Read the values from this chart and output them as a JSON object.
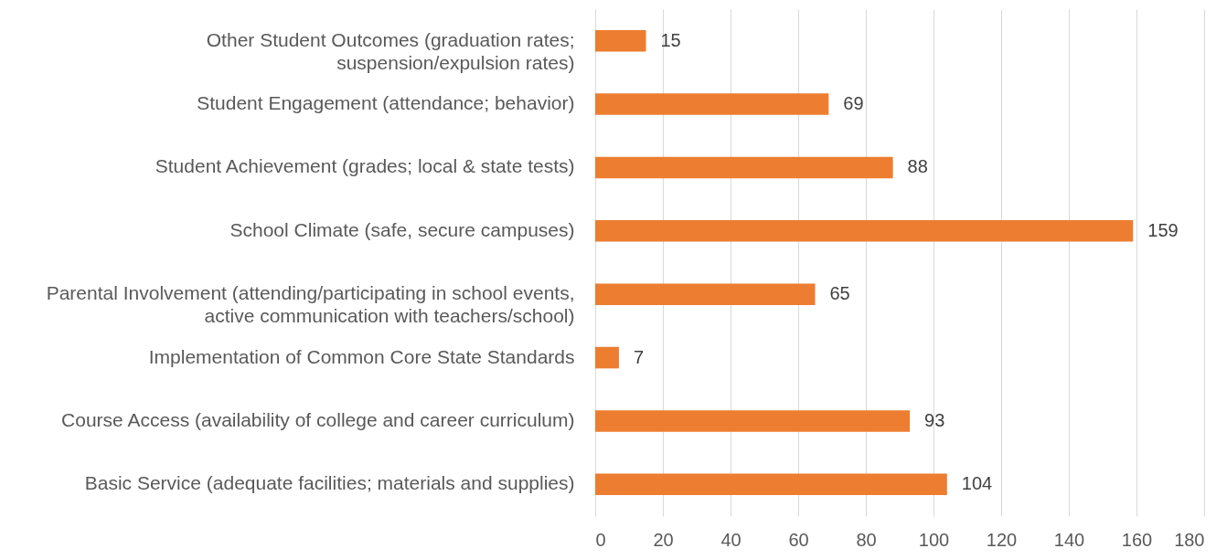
{
  "chart_data": {
    "type": "bar",
    "orientation": "horizontal",
    "categories": [
      "Other Student Outcomes (graduation rates; suspension/expulsion rates)",
      "Student Engagement (attendance; behavior)",
      "Student Achievement (grades; local & state tests)",
      "School Climate (safe, secure campuses)",
      "Parental Involvement (attending/participating in school events, active communication with teachers/school)",
      "Implementation of Common Core State Standards",
      "Course Access (availability of college and career curriculum)",
      "Basic Service (adequate facilities; materials and supplies)"
    ],
    "values": [
      15,
      69,
      88,
      159,
      65,
      7,
      93,
      104
    ],
    "color": "#ed7d31",
    "xlim": [
      0,
      180
    ],
    "xticks": [
      0,
      20,
      40,
      60,
      80,
      100,
      120,
      140,
      160,
      180
    ],
    "grid": "x",
    "data_labels": true
  }
}
